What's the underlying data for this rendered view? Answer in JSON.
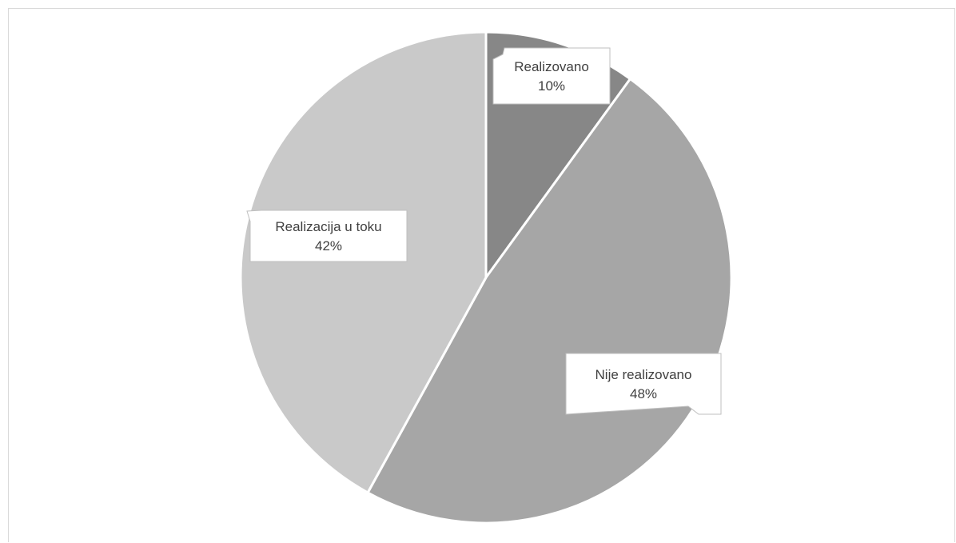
{
  "chart_data": {
    "type": "pie",
    "title": "",
    "slices": [
      {
        "label": "Realizovano",
        "value": 10,
        "value_label": "10%",
        "color": "#878787"
      },
      {
        "label": "Nije realizovano",
        "value": 48,
        "value_label": "48%",
        "color": "#a6a6a6"
      },
      {
        "label": "Realizacija u toku",
        "value": 42,
        "value_label": "42%",
        "color": "#c9c9c9"
      }
    ],
    "start_angle_deg": 0,
    "direction": "clockwise",
    "slice_border_color": "#ffffff",
    "data_labels": "callouts with category name and percentage",
    "legend": "none"
  }
}
